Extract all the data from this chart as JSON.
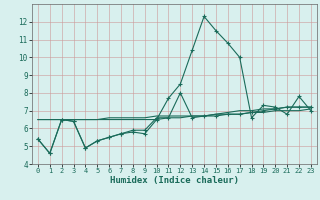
{
  "title": "",
  "xlabel": "Humidex (Indice chaleur)",
  "x_values": [
    0,
    1,
    2,
    3,
    4,
    5,
    6,
    7,
    8,
    9,
    10,
    11,
    12,
    13,
    14,
    15,
    16,
    17,
    18,
    19,
    20,
    21,
    22,
    23
  ],
  "series1": [
    5.4,
    4.6,
    6.5,
    6.4,
    4.9,
    5.3,
    5.5,
    5.7,
    5.8,
    5.7,
    6.5,
    7.7,
    8.5,
    10.4,
    12.3,
    11.5,
    10.8,
    10.0,
    6.6,
    7.3,
    7.2,
    6.8,
    7.8,
    7.0
  ],
  "series2": [
    5.4,
    4.6,
    6.5,
    6.4,
    4.9,
    5.3,
    5.5,
    5.7,
    5.9,
    5.9,
    6.6,
    6.6,
    8.0,
    6.6,
    6.7,
    6.7,
    6.8,
    6.8,
    6.9,
    7.0,
    7.1,
    7.2,
    7.2,
    7.2
  ],
  "series3": [
    6.5,
    6.5,
    6.5,
    6.5,
    6.5,
    6.5,
    6.6,
    6.6,
    6.6,
    6.6,
    6.7,
    6.7,
    6.7,
    6.7,
    6.7,
    6.8,
    6.8,
    6.8,
    6.9,
    6.9,
    7.0,
    7.0,
    7.0,
    7.1
  ],
  "series4": [
    6.5,
    6.5,
    6.5,
    6.5,
    6.5,
    6.5,
    6.5,
    6.5,
    6.5,
    6.5,
    6.5,
    6.6,
    6.6,
    6.7,
    6.7,
    6.8,
    6.9,
    7.0,
    7.0,
    7.1,
    7.1,
    7.2,
    7.2,
    7.2
  ],
  "line_color": "#1a6b5a",
  "bg_color": "#d8f0ee",
  "grid_color": "#b8ceca",
  "ylim": [
    4,
    13
  ],
  "yticks": [
    4,
    5,
    6,
    7,
    8,
    9,
    10,
    11,
    12
  ],
  "xticks": [
    0,
    1,
    2,
    3,
    4,
    5,
    6,
    7,
    8,
    9,
    10,
    11,
    12,
    13,
    14,
    15,
    16,
    17,
    18,
    19,
    20,
    21,
    22,
    23
  ]
}
